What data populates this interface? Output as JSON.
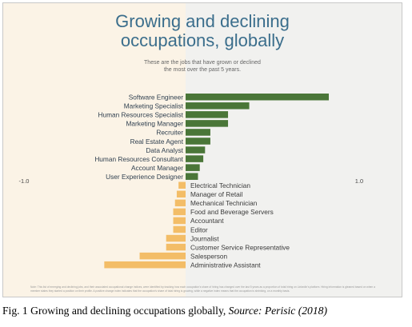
{
  "title_line1": "Growing and declining",
  "title_line2": "occupations, globally",
  "subtitle_line1": "These are the jobs that have grown or declined",
  "subtitle_line2": "the most over the past 5 years.",
  "note": "Note: This list of emerging and declining jobs, and their associated occupational change indices, were identified by tracking how each occupation's share of hiring has changed over the last 5 years as a proportion of total hiring on LinkedIn's platform. Hiring information is gleaned based on when a member states they started a position on their profile. A positive change index indicates that the occupation's share of total hiring is growing, while a negative index means that the occupation is shrinking, on a monthly basis.",
  "caption": {
    "prefix": "Fig. 1 Growing and declining occupations globally, ",
    "source": "Source: Perisic (2018)"
  },
  "chart_data": {
    "type": "bar",
    "orientation": "horizontal",
    "categories": [
      "Software Engineer",
      "Marketing Specialist",
      "Human Resources Specialist",
      "Marketing Manager",
      "Recruiter",
      "Real Estate Agent",
      "Data Analyst",
      "Human Resources Consultant",
      "Account Manager",
      "User Experience Designer",
      "Electrical Technician",
      "Manager of Retail",
      "Mechanical Technician",
      "Food and Beverage Servers",
      "Accountant",
      "Editor",
      "Journalist",
      "Customer Service Representative",
      "Salesperson",
      "Administrative Assistant"
    ],
    "values": [
      0.81,
      0.36,
      0.24,
      0.24,
      0.14,
      0.14,
      0.11,
      0.1,
      0.08,
      0.07,
      -0.04,
      -0.05,
      -0.06,
      -0.07,
      -0.07,
      -0.07,
      -0.11,
      -0.11,
      -0.26,
      -0.46
    ],
    "xlim": [
      -1.0,
      1.0
    ],
    "xtick_labels": [
      "-1.0",
      "1.0"
    ],
    "colors": {
      "positive": "#4a7638",
      "negative": "#f3bd67"
    },
    "grid": false
  }
}
